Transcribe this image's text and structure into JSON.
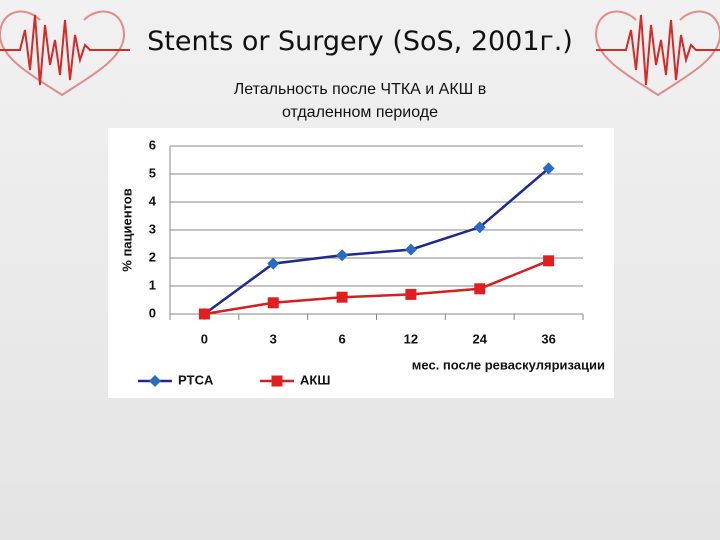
{
  "title": "Stents or Surgery (SoS, 2001г.)",
  "subtitle": "Летальность после ЧТКА и АКШ в отдаленном периоде",
  "chart_data": {
    "type": "line",
    "x_label": "мес. после реваскуляризации",
    "y_label": "% пациентов",
    "categories": [
      "0",
      "3",
      "6",
      "12",
      "24",
      "36"
    ],
    "series": [
      {
        "name": "PTCA",
        "color": "#1f2a8c",
        "marker_color": "#2b6cc0",
        "marker": "diamond",
        "values": [
          0,
          1.8,
          2.1,
          2.3,
          3.1,
          5.2
        ]
      },
      {
        "name": "АКШ",
        "color": "#d42020",
        "marker_color": "#e02020",
        "marker": "square",
        "values": [
          0,
          0.4,
          0.6,
          0.7,
          0.9,
          1.9
        ]
      }
    ],
    "ylim": [
      0,
      6
    ],
    "yticks": [
      0,
      1,
      2,
      3,
      4,
      5,
      6
    ],
    "grid": true,
    "legend": "bottom"
  }
}
